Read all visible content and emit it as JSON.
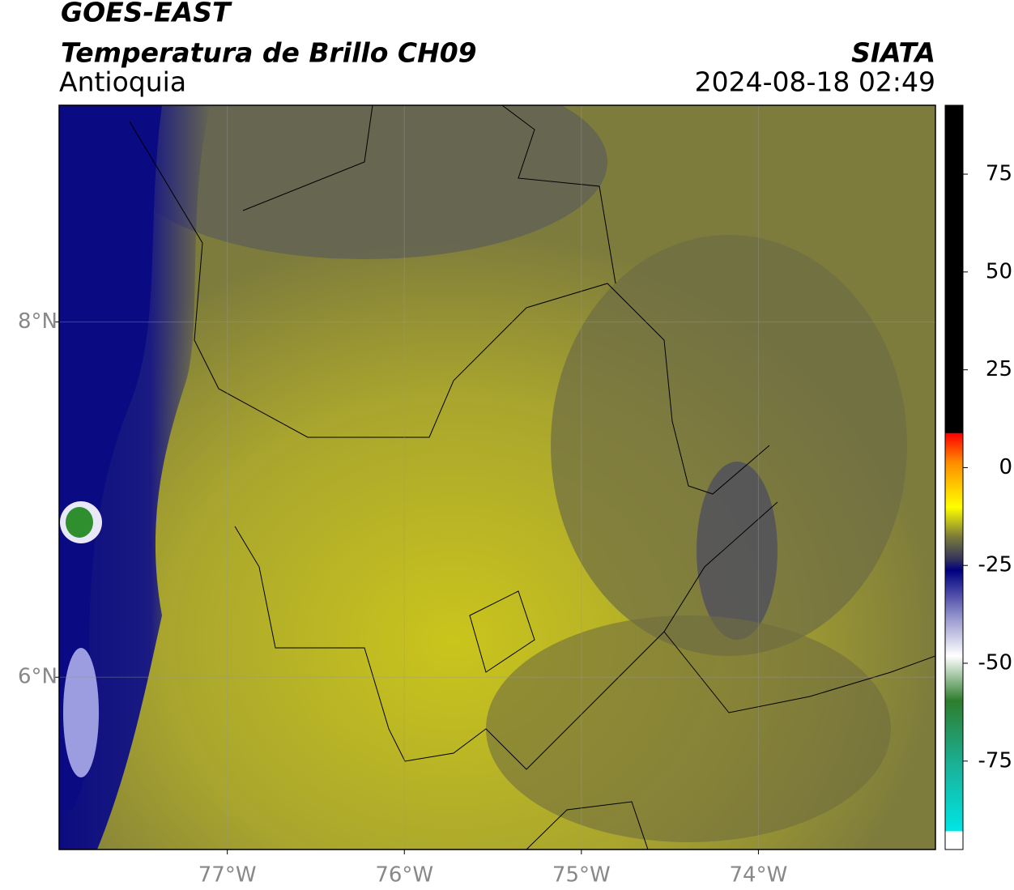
{
  "header": {
    "title": "GOES-EAST",
    "subtitle": "Temperatura de Brillo CH09",
    "region": "Antioquia",
    "source": "SIATA",
    "timestamp": "2024-08-18 02:49"
  },
  "map": {
    "xlim": [
      -77.95,
      -73.0
    ],
    "ylim": [
      5.03,
      9.22
    ],
    "xticks": [
      {
        "value": -77,
        "label": "77°W"
      },
      {
        "value": -76,
        "label": "76°W"
      },
      {
        "value": -75,
        "label": "75°W"
      },
      {
        "value": -74,
        "label": "74°W"
      }
    ],
    "yticks": [
      {
        "value": 8,
        "label": "8°N"
      },
      {
        "value": 6,
        "label": "6°N"
      }
    ],
    "grid": true
  },
  "colorbar": {
    "lim": [
      -97.6,
      92.6
    ],
    "ticks": [
      75,
      50,
      25,
      0,
      -25,
      -50,
      -75
    ]
  }
}
